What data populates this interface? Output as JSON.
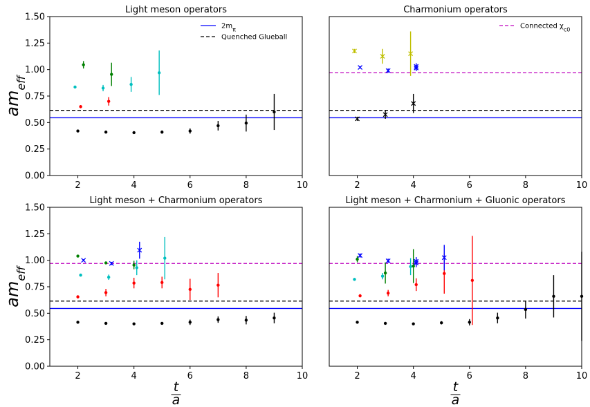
{
  "chart_data": [
    {
      "type": "scatter",
      "title": "Light meson operators",
      "ylabel": "am_eff",
      "xlabel": "",
      "xlim": [
        1,
        10
      ],
      "ylim": [
        0,
        1.5
      ],
      "xticks": [
        2,
        4,
        6,
        8,
        10
      ],
      "yticks": [
        0.0,
        0.25,
        0.5,
        0.75,
        1.0,
        1.25,
        1.5
      ],
      "grid": false,
      "legend": {
        "placement": "top-right",
        "entries": [
          {
            "label": "2m_π",
            "color": "#0000ff",
            "style": "solid"
          },
          {
            "label": "Quenched Glueball",
            "color": "#000000",
            "style": "dashed"
          }
        ]
      },
      "hlines": [
        {
          "y": 0.545,
          "color": "#0000ff",
          "style": "solid"
        },
        {
          "y": 0.615,
          "color": "#000000",
          "style": "dashed"
        }
      ],
      "series": [
        {
          "color": "#000000",
          "marker": "dot",
          "points": [
            [
              2,
              0.42,
              0.01
            ],
            [
              3,
              0.41,
              0.01
            ],
            [
              4,
              0.405,
              0.01
            ],
            [
              5,
              0.41,
              0.015
            ],
            [
              6,
              0.42,
              0.025
            ],
            [
              7,
              0.47,
              0.045
            ],
            [
              8,
              0.495,
              0.08
            ],
            [
              9,
              0.6,
              0.17
            ]
          ]
        },
        {
          "color": "#ff0000",
          "marker": "dot",
          "points": [
            [
              2.1,
              0.65,
              0.015
            ],
            [
              3.1,
              0.7,
              0.04
            ]
          ]
        },
        {
          "color": "#00bfbf",
          "marker": "dot",
          "points": [
            [
              1.9,
              0.835,
              0.01
            ],
            [
              2.9,
              0.825,
              0.03
            ],
            [
              3.9,
              0.86,
              0.07
            ],
            [
              4.9,
              0.97,
              0.21
            ]
          ]
        },
        {
          "color": "#008000",
          "marker": "dot",
          "points": [
            [
              2.2,
              1.045,
              0.035
            ],
            [
              3.2,
              0.955,
              0.11
            ]
          ]
        }
      ]
    },
    {
      "type": "scatter",
      "title": "Charmonium operators",
      "ylabel": "",
      "xlabel": "",
      "xlim": [
        1,
        10
      ],
      "ylim": [
        0,
        1.5
      ],
      "xticks": [
        2,
        4,
        6,
        8,
        10
      ],
      "yticks": [],
      "grid": false,
      "legend": {
        "placement": "top-right",
        "entries": [
          {
            "label": "Connected χ_c0",
            "color": "#bf00bf",
            "style": "dashed"
          }
        ]
      },
      "hlines": [
        {
          "y": 0.545,
          "color": "#0000ff",
          "style": "solid"
        },
        {
          "y": 0.615,
          "color": "#000000",
          "style": "dashed"
        },
        {
          "y": 0.97,
          "color": "#bf00bf",
          "style": "dashed"
        }
      ],
      "series": [
        {
          "color": "#000000",
          "marker": "x",
          "points": [
            [
              2,
              0.535,
              0.02
            ],
            [
              3,
              0.575,
              0.04
            ],
            [
              4,
              0.68,
              0.09
            ]
          ]
        },
        {
          "color": "#bfbf00",
          "marker": "x",
          "points": [
            [
              1.9,
              1.175,
              0.02
            ],
            [
              2.9,
              1.125,
              0.07
            ],
            [
              3.9,
              1.15,
              0.21
            ]
          ]
        },
        {
          "color": "#0000ff",
          "marker": "x",
          "points": [
            [
              2.1,
              1.02,
              0.01
            ],
            [
              3.1,
              0.99,
              0.02
            ],
            [
              4.1,
              1.03,
              0.03
            ],
            [
              4.1,
              1.015,
              0.03
            ]
          ]
        }
      ]
    },
    {
      "type": "scatter",
      "title": "Light meson + Charmonium operators",
      "ylabel": "am_eff",
      "xlabel": "t/a",
      "xlim": [
        1,
        10
      ],
      "ylim": [
        0,
        1.5
      ],
      "xticks": [
        2,
        4,
        6,
        8,
        10
      ],
      "yticks": [
        0.0,
        0.25,
        0.5,
        0.75,
        1.0,
        1.25,
        1.5
      ],
      "grid": false,
      "hlines": [
        {
          "y": 0.545,
          "color": "#0000ff",
          "style": "solid"
        },
        {
          "y": 0.615,
          "color": "#000000",
          "style": "dashed"
        },
        {
          "y": 0.97,
          "color": "#bf00bf",
          "style": "dashed"
        }
      ],
      "series": [
        {
          "color": "#000000",
          "marker": "dot",
          "points": [
            [
              2,
              0.415,
              0.01
            ],
            [
              3,
              0.405,
              0.01
            ],
            [
              4,
              0.4,
              0.01
            ],
            [
              5,
              0.405,
              0.01
            ],
            [
              6,
              0.415,
              0.025
            ],
            [
              7,
              0.44,
              0.03
            ],
            [
              8,
              0.435,
              0.04
            ],
            [
              9,
              0.455,
              0.05
            ]
          ]
        },
        {
          "color": "#ff0000",
          "marker": "dot",
          "points": [
            [
              2,
              0.655,
              0.015
            ],
            [
              3,
              0.695,
              0.035
            ],
            [
              4,
              0.785,
              0.05
            ],
            [
              5,
              0.79,
              0.055
            ],
            [
              6,
              0.725,
              0.1
            ],
            [
              7,
              0.765,
              0.115
            ]
          ]
        },
        {
          "color": "#00bfbf",
          "marker": "dot",
          "points": [
            [
              2.1,
              0.86,
              0.01
            ],
            [
              3.1,
              0.84,
              0.025
            ],
            [
              4.1,
              0.93,
              0.07
            ],
            [
              5.1,
              1.02,
              0.2
            ]
          ]
        },
        {
          "color": "#008000",
          "marker": "dot",
          "points": [
            [
              2,
              1.04,
              0.01
            ],
            [
              3,
              0.975,
              0.01
            ],
            [
              4,
              0.955,
              0.04
            ]
          ]
        },
        {
          "color": "#0000ff",
          "marker": "x",
          "points": [
            [
              2.2,
              1.0,
              0.01
            ],
            [
              3.2,
              0.97,
              0.015
            ],
            [
              4.2,
              1.095,
              0.08
            ]
          ]
        }
      ]
    },
    {
      "type": "scatter",
      "title": "Light meson + Charmonium + Gluonic operators",
      "ylabel": "",
      "xlabel": "t/a",
      "xlim": [
        1,
        10
      ],
      "ylim": [
        0,
        1.5
      ],
      "xticks": [
        2,
        4,
        6,
        8,
        10
      ],
      "yticks": [],
      "grid": false,
      "hlines": [
        {
          "y": 0.545,
          "color": "#0000ff",
          "style": "solid"
        },
        {
          "y": 0.615,
          "color": "#000000",
          "style": "dashed"
        },
        {
          "y": 0.97,
          "color": "#bf00bf",
          "style": "dashed"
        }
      ],
      "series": [
        {
          "color": "#000000",
          "marker": "dot",
          "points": [
            [
              2,
              0.415,
              0.01
            ],
            [
              3,
              0.405,
              0.01
            ],
            [
              4,
              0.4,
              0.01
            ],
            [
              5,
              0.41,
              0.015
            ],
            [
              6,
              0.415,
              0.03
            ],
            [
              7,
              0.455,
              0.05
            ],
            [
              8,
              0.535,
              0.085
            ],
            [
              9,
              0.66,
              0.2
            ],
            [
              10,
              0.66,
              0.42
            ]
          ]
        },
        {
          "color": "#ff0000",
          "marker": "dot",
          "points": [
            [
              2.1,
              0.665,
              0.015
            ],
            [
              3.1,
              0.69,
              0.03
            ],
            [
              4.1,
              0.77,
              0.06
            ],
            [
              5.1,
              0.875,
              0.19
            ],
            [
              6.1,
              0.81,
              0.42
            ]
          ]
        },
        {
          "color": "#00bfbf",
          "marker": "dot",
          "points": [
            [
              1.9,
              0.82,
              0.01
            ],
            [
              2.9,
              0.85,
              0.03
            ],
            [
              3.9,
              0.94,
              0.08
            ]
          ]
        },
        {
          "color": "#008000",
          "marker": "dot",
          "points": [
            [
              2,
              1.01,
              0.03
            ],
            [
              3,
              0.88,
              0.1
            ],
            [
              4,
              0.945,
              0.16
            ]
          ]
        },
        {
          "color": "#0000ff",
          "marker": "x",
          "points": [
            [
              2.1,
              1.045,
              0.02
            ],
            [
              3.1,
              0.995,
              0.02
            ],
            [
              4.1,
              0.99,
              0.04
            ],
            [
              4.1,
              0.975,
              0.04
            ],
            [
              5.1,
              1.025,
              0.12
            ]
          ]
        }
      ]
    }
  ]
}
